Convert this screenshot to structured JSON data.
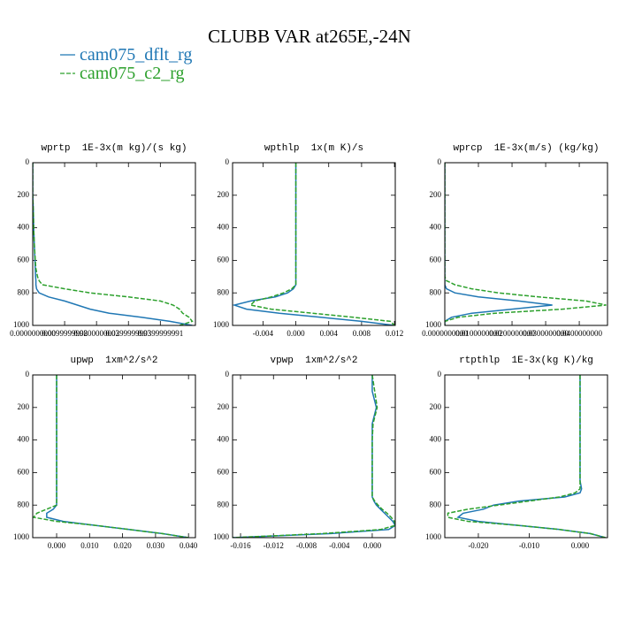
{
  "title": "CLUBB VAR at265E,-24N",
  "legend": [
    {
      "name": "cam075_dflt_rg",
      "color": "#1f77b4",
      "dash": "solid"
    },
    {
      "name": "cam075_c2_rg",
      "color": "#2ca02c",
      "dash": "dashed"
    }
  ],
  "legend_position": "upper left",
  "chart_data": [
    {
      "type": "line",
      "title": "wprtp  1E-3x(m kg)/(s kg)",
      "y": [
        0,
        100,
        200,
        300,
        400,
        500,
        600,
        650,
        700,
        725,
        750,
        775,
        800,
        825,
        850,
        875,
        900,
        925,
        950,
        975,
        1000
      ],
      "ylim": [
        1000,
        0
      ],
      "yticks": [
        0,
        200,
        400,
        600,
        800,
        1000
      ],
      "xlim": [
        0,
        0.051
      ],
      "xticks": [
        {
          "value": 0,
          "label": "0.0000000000"
        },
        {
          "value": 0.01,
          "label": "0.0099999998"
        },
        {
          "value": 0.02,
          "label": "0.0200000003"
        },
        {
          "value": 0.03,
          "label": "0.0299999993"
        },
        {
          "value": 0.04,
          "label": "0.0399999991"
        }
      ],
      "series": [
        {
          "values": [
            0,
            0,
            0,
            0.0002,
            0.0003,
            0.0005,
            0.0007,
            0.0008,
            0.0009,
            0.001,
            0.001,
            0.0012,
            0.002,
            0.005,
            0.01,
            0.014,
            0.018,
            0.024,
            0.034,
            0.043,
            0.05
          ]
        },
        {
          "values": [
            0,
            0,
            0,
            0.0002,
            0.0003,
            0.0005,
            0.0008,
            0.001,
            0.0015,
            0.002,
            0.003,
            0.01,
            0.018,
            0.03,
            0.04,
            0.044,
            0.046,
            0.047,
            0.049,
            0.05,
            0.046
          ]
        }
      ]
    },
    {
      "type": "line",
      "title": "wpthlp  1x(m K)/s",
      "y": [
        0,
        100,
        200,
        300,
        400,
        500,
        600,
        650,
        700,
        725,
        750,
        775,
        800,
        825,
        850,
        875,
        900,
        925,
        950,
        975,
        1000
      ],
      "ylim": [
        1000,
        0
      ],
      "yticks": [
        0,
        200,
        400,
        600,
        800,
        1000
      ],
      "xlim": [
        -0.0077,
        0.0121
      ],
      "xticks": [
        {
          "value": -0.004,
          "label": "-0.004"
        },
        {
          "value": 0,
          "label": "0.000"
        },
        {
          "value": 0.004,
          "label": "0.004"
        },
        {
          "value": 0.008,
          "label": "0.008"
        },
        {
          "value": 0.012,
          "label": "0.012"
        }
      ],
      "series": [
        {
          "values": [
            0,
            0,
            0,
            0,
            0,
            0,
            0,
            0,
            0,
            0,
            0,
            -0.0003,
            -0.001,
            -0.0025,
            -0.0055,
            -0.0075,
            -0.006,
            -0.002,
            0.003,
            0.008,
            0.012
          ]
        },
        {
          "values": [
            0,
            0,
            0,
            0,
            0,
            0,
            0,
            0,
            0,
            0,
            0,
            -0.0005,
            -0.0015,
            -0.003,
            -0.005,
            -0.0055,
            -0.003,
            0.002,
            0.007,
            0.0115,
            0.012
          ]
        }
      ]
    },
    {
      "type": "line",
      "title": "wprcp  1E-3x(m/s) (kg/kg)",
      "y": [
        0,
        100,
        200,
        300,
        400,
        500,
        600,
        650,
        700,
        725,
        750,
        775,
        800,
        825,
        850,
        875,
        900,
        925,
        950,
        975,
        1000
      ],
      "ylim": [
        1000,
        0
      ],
      "yticks": [
        0,
        200,
        400,
        600,
        800,
        1000
      ],
      "xlim": [
        0,
        0.0484
      ],
      "xticks": [
        {
          "value": 0,
          "label": "0.0000000000"
        },
        {
          "value": 0.01,
          "label": "0.0100000000"
        },
        {
          "value": 0.02,
          "label": "0.0200000000"
        },
        {
          "value": 0.03,
          "label": "0.0300000000"
        },
        {
          "value": 0.04,
          "label": "0.0400000000"
        }
      ],
      "series": [
        {
          "values": [
            0,
            0,
            0,
            0,
            0,
            0,
            0,
            0,
            0,
            0,
            0,
            0.0005,
            0.003,
            0.01,
            0.022,
            0.032,
            0.02,
            0.008,
            0.002,
            0,
            0
          ]
        },
        {
          "values": [
            0,
            0,
            0,
            0,
            0,
            0,
            0,
            0,
            0,
            0.0005,
            0.003,
            0.008,
            0.016,
            0.028,
            0.042,
            0.048,
            0.035,
            0.015,
            0.004,
            0,
            0
          ]
        }
      ]
    },
    {
      "type": "line",
      "title": "upwp  1xm^2/s^2",
      "y": [
        0,
        100,
        200,
        300,
        400,
        500,
        600,
        650,
        700,
        725,
        750,
        775,
        800,
        825,
        850,
        875,
        900,
        925,
        950,
        975,
        1000
      ],
      "ylim": [
        1000,
        0
      ],
      "yticks": [
        0,
        200,
        400,
        600,
        800,
        1000
      ],
      "xlim": [
        -0.00725,
        0.0421
      ],
      "xticks": [
        {
          "value": 0,
          "label": "0.000"
        },
        {
          "value": 0.01,
          "label": "0.010"
        },
        {
          "value": 0.02,
          "label": "0.020"
        },
        {
          "value": 0.03,
          "label": "0.030"
        },
        {
          "value": 0.04,
          "label": "0.040"
        }
      ],
      "series": [
        {
          "values": [
            0,
            0,
            0,
            0,
            0,
            0,
            0,
            0,
            0,
            0,
            0,
            0,
            0,
            -0.001,
            -0.003,
            -0.003,
            0.002,
            0.012,
            0.022,
            0.032,
            0.04
          ]
        },
        {
          "values": [
            0,
            0,
            0,
            0,
            0,
            0,
            0,
            0,
            0,
            0,
            0,
            0,
            0,
            -0.003,
            -0.006,
            -0.007,
            0,
            0.012,
            0.022,
            0.032,
            0.04
          ]
        }
      ]
    },
    {
      "type": "line",
      "title": "vpwp  1xm^2/s^2",
      "y": [
        0,
        100,
        200,
        300,
        400,
        500,
        600,
        650,
        700,
        725,
        750,
        775,
        800,
        825,
        850,
        875,
        900,
        925,
        950,
        975,
        1000
      ],
      "ylim": [
        1000,
        0
      ],
      "yticks": [
        0,
        200,
        400,
        600,
        800,
        1000
      ],
      "xlim": [
        -0.01697,
        0.0028
      ],
      "xticks": [
        {
          "value": -0.016,
          "label": "-0.016"
        },
        {
          "value": -0.012,
          "label": "-0.012"
        },
        {
          "value": -0.008,
          "label": "-0.008"
        },
        {
          "value": -0.004,
          "label": "-0.004"
        },
        {
          "value": 0,
          "label": "0.000"
        }
      ],
      "series": [
        {
          "values": [
            0,
            0,
            0.0005,
            0,
            0,
            0,
            0,
            0,
            0,
            0,
            0,
            0.0002,
            0.0005,
            0.001,
            0.0015,
            0.002,
            0.0025,
            0.0028,
            0.002,
            -0.005,
            -0.017
          ]
        },
        {
          "values": [
            0,
            0.0003,
            0.0006,
            0.0001,
            0,
            0,
            0,
            0,
            0,
            0,
            0,
            0.0003,
            0.0007,
            0.0012,
            0.0018,
            0.0023,
            0.0027,
            0.0028,
            0.001,
            -0.006,
            -0.017
          ]
        }
      ]
    },
    {
      "type": "line",
      "title": "rtpthlp  1E-3x(kg K)/kg",
      "y": [
        0,
        100,
        200,
        300,
        400,
        500,
        600,
        650,
        700,
        725,
        750,
        775,
        800,
        825,
        850,
        875,
        900,
        925,
        950,
        975,
        1000
      ],
      "ylim": [
        1000,
        0
      ],
      "yticks": [
        0,
        200,
        400,
        600,
        800,
        1000
      ],
      "xlim": [
        -0.0266,
        0.0054
      ],
      "xticks": [
        {
          "value": -0.02,
          "label": "-0.020"
        },
        {
          "value": -0.01,
          "label": "-0.010"
        },
        {
          "value": 0,
          "label": "0.000"
        }
      ],
      "series": [
        {
          "values": [
            0,
            0,
            0,
            0,
            0,
            0,
            0,
            0,
            0.0003,
            0,
            -0.003,
            -0.012,
            -0.017,
            -0.019,
            -0.023,
            -0.024,
            -0.02,
            -0.012,
            -0.004,
            0.002,
            0.005
          ]
        },
        {
          "values": [
            0,
            0,
            0,
            0,
            0,
            0,
            0,
            0,
            0,
            -0.001,
            -0.004,
            -0.01,
            -0.016,
            -0.022,
            -0.026,
            -0.026,
            -0.022,
            -0.012,
            -0.004,
            0.002,
            0.005
          ]
        }
      ]
    }
  ]
}
